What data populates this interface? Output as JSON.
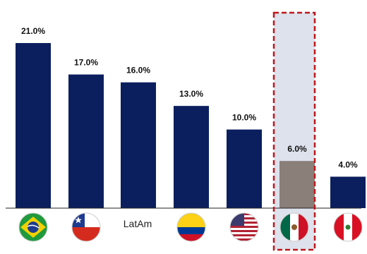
{
  "chart_data": {
    "type": "bar",
    "categories": [
      "Brazil",
      "Chile",
      "LatAm",
      "Colombia",
      "USA",
      "Mexico",
      "Peru"
    ],
    "values": [
      21.0,
      17.0,
      16.0,
      13.0,
      10.0,
      6.0,
      4.0
    ],
    "value_labels": [
      "21.0%",
      "17.0%",
      "16.0%",
      "13.0%",
      "10.0%",
      "6.0%",
      "4.0%"
    ],
    "category_display": [
      "flag-brazil-icon",
      "flag-chile-icon",
      "LatAm",
      "flag-colombia-icon",
      "flag-usa-icon",
      "flag-mexico-icon",
      "flag-peru-icon"
    ],
    "highlighted_category": "Mexico",
    "ylim": [
      0,
      22
    ],
    "grid": false,
    "colors": {
      "bar": "#0b1f5e",
      "highlight_bar": "#8a7f79",
      "highlight_band": "#dde2ec",
      "highlight_border": "#c0161b",
      "axis": "#222222"
    }
  }
}
